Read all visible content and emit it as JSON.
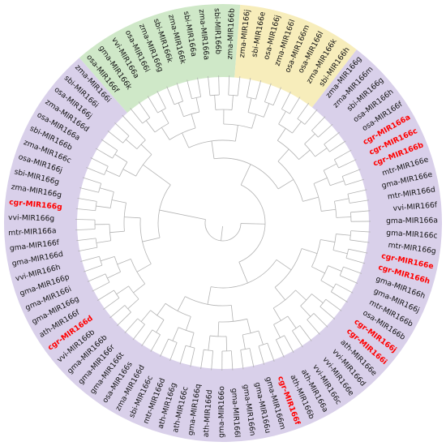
{
  "tree": {
    "colors": {
      "green_clade": "#cfe8c8",
      "yellow_clade": "#f7edbb",
      "purple_clade": "#d9d0ea",
      "branch": "#b3b3b3",
      "highlight_text": "#ff0000",
      "normal_text": "#111111"
    },
    "leaves": [
      {
        "label": "osa-MIR166f",
        "clade": "green"
      },
      {
        "label": "gma-MIR166k",
        "clade": "green"
      },
      {
        "label": "vvi-MIR166a",
        "clade": "green"
      },
      {
        "label": "osa-MIR166i",
        "clade": "green"
      },
      {
        "label": "zma-MIR166g",
        "clade": "green"
      },
      {
        "label": "sbi-MIR166k",
        "clade": "green"
      },
      {
        "label": "zma-MIR166k",
        "clade": "green"
      },
      {
        "label": "sbi-MIR166a",
        "clade": "green"
      },
      {
        "label": "zma-MIR166a",
        "clade": "green"
      },
      {
        "label": "sbi-MIR166b",
        "clade": "green"
      },
      {
        "label": "zma-MIR166b",
        "clade": "green"
      },
      {
        "label": "zma-MIR166j",
        "clade": "yellow"
      },
      {
        "label": "sbi-MIR166e",
        "clade": "yellow"
      },
      {
        "label": "osa-MIR166j",
        "clade": "yellow"
      },
      {
        "label": "zma-MIR166l",
        "clade": "yellow"
      },
      {
        "label": "osa-MIR166m",
        "clade": "yellow"
      },
      {
        "label": "osa-MIR166l",
        "clade": "yellow"
      },
      {
        "label": "zma-MIR166k",
        "clade": "yellow"
      },
      {
        "label": "sbi-MIR166h",
        "clade": "yellow"
      },
      {
        "label": "zma-MIR166g",
        "clade": "purple"
      },
      {
        "label": "zma-MIR166m",
        "clade": "purple"
      },
      {
        "label": "sbi-MIR166g",
        "clade": "purple"
      },
      {
        "label": "osa-MIR166h",
        "clade": "purple"
      },
      {
        "label": "osa-MIR166f",
        "clade": "purple"
      },
      {
        "label": "cgr-MIR166a",
        "clade": "purple",
        "highlight": true
      },
      {
        "label": "cgr-MIR166c",
        "clade": "purple",
        "highlight": true
      },
      {
        "label": "cgr-MIR166b",
        "clade": "purple",
        "highlight": true
      },
      {
        "label": "mtr-MIR166e",
        "clade": "purple"
      },
      {
        "label": "gma-MIR166e",
        "clade": "purple"
      },
      {
        "label": "mtr-MIR166d",
        "clade": "purple"
      },
      {
        "label": "vvi-MIR166f",
        "clade": "purple"
      },
      {
        "label": "gma-MIR166a",
        "clade": "purple"
      },
      {
        "label": "gma-MIR166c",
        "clade": "purple"
      },
      {
        "label": "mtr-MIR166g",
        "clade": "purple"
      },
      {
        "label": "cgr-MIR166e",
        "clade": "purple",
        "highlight": true
      },
      {
        "label": "cgr-MIR166h",
        "clade": "purple",
        "highlight": true
      },
      {
        "label": "gma-MIR166h",
        "clade": "purple"
      },
      {
        "label": "gma-MIR166j",
        "clade": "purple"
      },
      {
        "label": "mtr-MIR166b",
        "clade": "purple"
      },
      {
        "label": "osa-MIR166b",
        "clade": "purple"
      },
      {
        "label": "cgr-MIR166j",
        "clade": "purple",
        "highlight": true
      },
      {
        "label": "cgr-MIR166i",
        "clade": "purple",
        "highlight": true
      },
      {
        "label": "ath-MIR166e",
        "clade": "purple"
      },
      {
        "label": "vvi-MIR166d",
        "clade": "purple"
      },
      {
        "label": "vvi-MIR166e",
        "clade": "purple"
      },
      {
        "label": "vvi-MIR166c",
        "clade": "purple"
      },
      {
        "label": "ath-MIR166a",
        "clade": "purple"
      },
      {
        "label": "ath-MIR166b",
        "clade": "purple"
      },
      {
        "label": "cgr-MIR166f",
        "clade": "purple",
        "highlight": true
      },
      {
        "label": "gma-MIR166m",
        "clade": "purple"
      },
      {
        "label": "gma-MIR166u",
        "clade": "purple"
      },
      {
        "label": "gma-MIR166n",
        "clade": "purple"
      },
      {
        "label": "gma-MIR166l",
        "clade": "purple"
      },
      {
        "label": "gma-MIR166o",
        "clade": "purple"
      },
      {
        "label": "ath-MIR166d",
        "clade": "purple"
      },
      {
        "label": "gma-MIR166q",
        "clade": "purple"
      },
      {
        "label": "ath-MIR166c",
        "clade": "purple"
      },
      {
        "label": "ath-MIR166g",
        "clade": "purple"
      },
      {
        "label": "mtr-MIR166d",
        "clade": "purple"
      },
      {
        "label": "sbi-MIR166c",
        "clade": "purple"
      },
      {
        "label": "zma-MIR166d",
        "clade": "purple"
      },
      {
        "label": "osa-MIR166s",
        "clade": "purple"
      },
      {
        "label": "gma-MIR166t",
        "clade": "purple"
      },
      {
        "label": "gma-MIR166r",
        "clade": "purple"
      },
      {
        "label": "gma-MIR166b",
        "clade": "purple"
      },
      {
        "label": "vvi-MIR166b",
        "clade": "purple"
      },
      {
        "label": "cgr-MIR166d",
        "clade": "purple",
        "highlight": true
      },
      {
        "label": "ath-MIR166f",
        "clade": "purple"
      },
      {
        "label": "gma-MIR166g",
        "clade": "purple"
      },
      {
        "label": "gma-MIR166i",
        "clade": "purple"
      },
      {
        "label": "gma-MIR166p",
        "clade": "purple"
      },
      {
        "label": "vvi-MIR166h",
        "clade": "purple"
      },
      {
        "label": "gma-MIR166d",
        "clade": "purple"
      },
      {
        "label": "gma-MIR166f",
        "clade": "purple"
      },
      {
        "label": "mtr-MIR166a",
        "clade": "purple"
      },
      {
        "label": "vvi-MIR166g",
        "clade": "purple"
      },
      {
        "label": "cgr-MIR166g",
        "clade": "purple",
        "highlight": true
      },
      {
        "label": "zma-MIR166g",
        "clade": "purple"
      },
      {
        "label": "sbi-MIR166g",
        "clade": "purple"
      },
      {
        "label": "osa-MIR166j",
        "clade": "purple"
      },
      {
        "label": "zma-MIR166c",
        "clade": "purple"
      },
      {
        "label": "sbi-MIR166b",
        "clade": "purple"
      },
      {
        "label": "osa-MIR166a",
        "clade": "purple"
      },
      {
        "label": "zma-MIR166d",
        "clade": "purple"
      },
      {
        "label": "osa-MIR166j",
        "clade": "purple"
      },
      {
        "label": "sbi-MIR166i",
        "clade": "purple"
      },
      {
        "label": "zma-MIR166i",
        "clade": "purple"
      }
    ]
  }
}
